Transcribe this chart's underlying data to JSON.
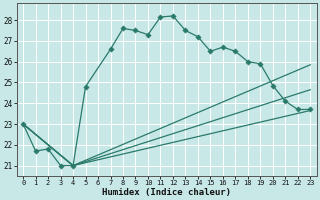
{
  "xlabel": "Humidex (Indice chaleur)",
  "xlim": [
    -0.5,
    23.5
  ],
  "ylim": [
    20.5,
    28.8
  ],
  "yticks": [
    21,
    22,
    23,
    24,
    25,
    26,
    27,
    28
  ],
  "xticks": [
    0,
    1,
    2,
    3,
    4,
    5,
    6,
    7,
    8,
    9,
    10,
    11,
    12,
    13,
    14,
    15,
    16,
    17,
    18,
    19,
    20,
    21,
    22,
    23
  ],
  "bg_color": "#c8e8e8",
  "grid_color": "#ffffff",
  "line_color": "#2a7a6a",
  "main_line": {
    "x": [
      0,
      1,
      2,
      3,
      4,
      5,
      7,
      8,
      9,
      10,
      11,
      12,
      13,
      14,
      15,
      16,
      17,
      18,
      19,
      20,
      21,
      22,
      23
    ],
    "y": [
      23,
      21.7,
      21.8,
      21.0,
      21.0,
      24.8,
      26.6,
      27.6,
      27.5,
      27.3,
      28.15,
      28.2,
      27.5,
      27.2,
      26.5,
      26.7,
      26.5,
      26.0,
      25.9,
      24.85,
      24.1,
      23.7,
      23.7
    ]
  },
  "straight_lines": [
    {
      "x": [
        0,
        4,
        23
      ],
      "y": [
        23,
        21.0,
        23.65
      ]
    },
    {
      "x": [
        0,
        4,
        23
      ],
      "y": [
        23,
        21.0,
        24.65
      ]
    },
    {
      "x": [
        0,
        4,
        23
      ],
      "y": [
        23,
        21.0,
        25.85
      ]
    }
  ]
}
